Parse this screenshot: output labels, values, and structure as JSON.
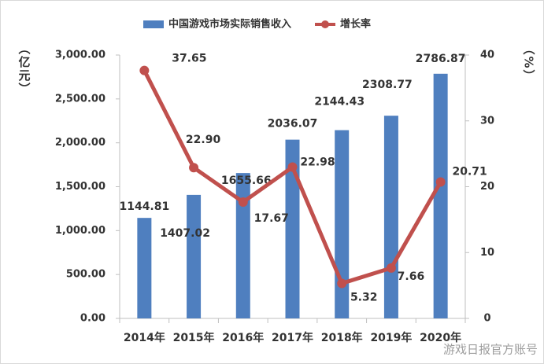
{
  "chart_data": {
    "type": "bar_line",
    "categories": [
      "2014年",
      "2015年",
      "2016年",
      "2017年",
      "2018年",
      "2019年",
      "2020年"
    ],
    "series": [
      {
        "name": "中国游戏市场实际销售收入",
        "type": "bar",
        "color": "#4f7fbf",
        "values": [
          1144.81,
          1407.02,
          1655.66,
          2036.07,
          2144.43,
          2308.77,
          2786.87
        ],
        "value_labels": [
          "1144.81",
          "1407.02",
          "1655.66",
          "2036.07",
          "2144.43",
          "2308.77",
          "2786.87"
        ]
      },
      {
        "name": "增长率",
        "type": "line",
        "axis": "y2",
        "color": "#c0504d",
        "values": [
          37.65,
          22.9,
          17.67,
          22.98,
          5.32,
          7.66,
          20.71
        ],
        "value_labels": [
          "37.65",
          "22.90",
          "17.67",
          "22.98",
          "5.32",
          "7.66",
          "20.71"
        ]
      }
    ],
    "y_label": "（亿元）",
    "y2_label": "（%）",
    "ylim": [
      0,
      3000
    ],
    "yticks": [
      {
        "value": 0,
        "label": "0.00"
      },
      {
        "value": 500,
        "label": "500.00"
      },
      {
        "value": 1000,
        "label": "1,000.00"
      },
      {
        "value": 1500,
        "label": "1,500.00"
      },
      {
        "value": 2000,
        "label": "2,000.00"
      },
      {
        "value": 2500,
        "label": "2,500.00"
      },
      {
        "value": 3000,
        "label": "3,000.00"
      }
    ],
    "y2lim": [
      0,
      40
    ],
    "y2ticks": [
      0,
      10,
      20,
      30,
      40
    ],
    "legend": "top",
    "grid": false,
    "watermark": "游戏日报官方账号"
  }
}
